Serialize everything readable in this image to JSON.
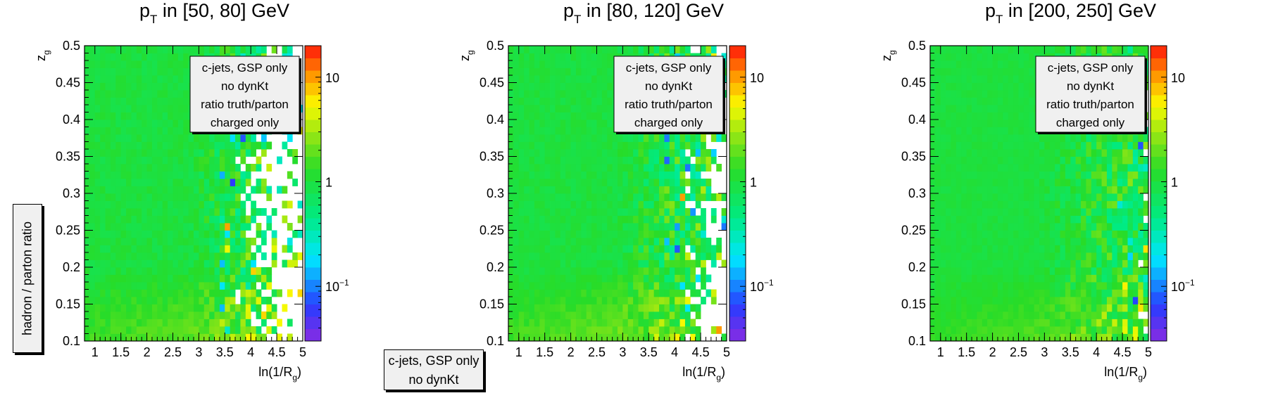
{
  "y_axis_title": "hadron / parton ratio",
  "footer_legend": [
    "c-jets, GSP only",
    "no dynKt"
  ],
  "colors": {
    "empty_cell": "#ffffff",
    "frame": "#000000",
    "legend_fill": "#f0f0f0"
  },
  "chart_data": [
    {
      "type": "heatmap",
      "title_main": "p",
      "title_sub": "T",
      "title_rest": " in [50, 80] GeV",
      "xlabel_main": "ln(1/R",
      "xlabel_sub": "g",
      "xlabel_close": ")",
      "ylabel_main": "z",
      "ylabel_sub": "g",
      "xlim": [
        0.8,
        5.0
      ],
      "ylim": [
        0.1,
        0.5
      ],
      "x_ticks": [
        "1",
        "1.5",
        "2",
        "2.5",
        "3",
        "3.5",
        "4",
        "4.5",
        "5"
      ],
      "y_ticks": [
        "0.1",
        "0.15",
        "0.2",
        "0.25",
        "0.3",
        "0.35",
        "0.4",
        "0.45",
        "0.5"
      ],
      "zlim": [
        0.03,
        20
      ],
      "z_scale": "log",
      "z_ticks": [
        {
          "base": "10",
          "exp": "",
          "value": 10
        },
        {
          "base": "1",
          "exp": "",
          "value": 1
        },
        {
          "base": "10",
          "exp": "−1",
          "value": 0.1
        }
      ],
      "legend": [
        "c-jets, GSP only",
        "no dynKt",
        "ratio truth/parton",
        "charged only"
      ],
      "bins": {
        "nx": 42,
        "ny": 40
      },
      "ratio_typical": 1.0,
      "low_z_ratio": 2.5,
      "empty_region_start_x": 3.7,
      "noise_scale": 1.0
    },
    {
      "type": "heatmap",
      "title_main": "p",
      "title_sub": "T",
      "title_rest": " in [80, 120] GeV",
      "xlabel_main": "ln(1/R",
      "xlabel_sub": "g",
      "xlabel_close": ")",
      "ylabel_main": "z",
      "ylabel_sub": "g",
      "xlim": [
        0.8,
        5.0
      ],
      "ylim": [
        0.1,
        0.5
      ],
      "x_ticks": [
        "1",
        "1.5",
        "2",
        "2.5",
        "3",
        "3.5",
        "4",
        "4.5",
        "5"
      ],
      "y_ticks": [
        "0.1",
        "0.15",
        "0.2",
        "0.25",
        "0.3",
        "0.35",
        "0.4",
        "0.45",
        "0.5"
      ],
      "zlim": [
        0.03,
        20
      ],
      "z_scale": "log",
      "z_ticks": [
        {
          "base": "10",
          "exp": "",
          "value": 10
        },
        {
          "base": "1",
          "exp": "",
          "value": 1
        },
        {
          "base": "10",
          "exp": "−1",
          "value": 0.1
        }
      ],
      "legend": [
        "c-jets, GSP only",
        "no dynKt",
        "ratio truth/parton",
        "charged only"
      ],
      "bins": {
        "nx": 42,
        "ny": 40
      },
      "ratio_typical": 1.0,
      "low_z_ratio": 2.8,
      "empty_region_start_x": 4.1,
      "noise_scale": 0.85
    },
    {
      "type": "heatmap",
      "title_main": "p",
      "title_sub": "T",
      "title_rest": " in [200, 250] GeV",
      "xlabel_main": "ln(1/R",
      "xlabel_sub": "g",
      "xlabel_close": ")",
      "ylabel_main": "z",
      "ylabel_sub": "g",
      "xlim": [
        0.8,
        5.0
      ],
      "ylim": [
        0.1,
        0.5
      ],
      "x_ticks": [
        "1",
        "1.5",
        "2",
        "2.5",
        "3",
        "3.5",
        "4",
        "4.5",
        "5"
      ],
      "y_ticks": [
        "0.1",
        "0.15",
        "0.2",
        "0.25",
        "0.3",
        "0.35",
        "0.4",
        "0.45",
        "0.5"
      ],
      "zlim": [
        0.03,
        20
      ],
      "z_scale": "log",
      "z_ticks": [
        {
          "base": "10",
          "exp": "",
          "value": 10
        },
        {
          "base": "1",
          "exp": "",
          "value": 1
        },
        {
          "base": "10",
          "exp": "−1",
          "value": 0.1
        }
      ],
      "legend": [
        "c-jets, GSP only",
        "no dynKt",
        "ratio truth/parton",
        "charged only"
      ],
      "bins": {
        "nx": 42,
        "ny": 40
      },
      "ratio_typical": 1.0,
      "low_z_ratio": 2.2,
      "empty_region_start_x": 4.7,
      "noise_scale": 0.6
    }
  ]
}
